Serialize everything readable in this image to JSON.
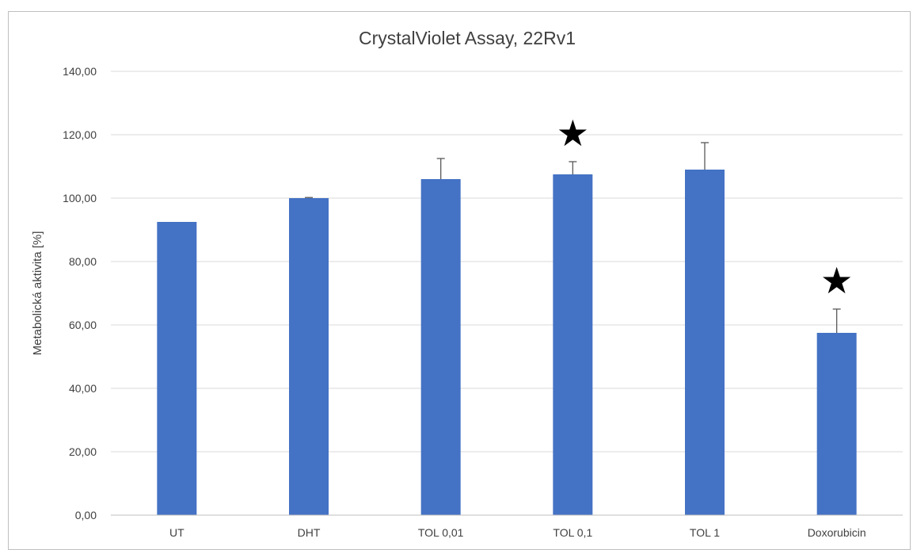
{
  "chart_data": {
    "type": "bar",
    "title": "CrystalViolet Assay, 22Rv1",
    "xlabel": "",
    "ylabel": "Metabolická aktivita [%]",
    "ylim": [
      0,
      140
    ],
    "ytick_step": 20,
    "ytick_labels": [
      "0,00",
      "20,00",
      "40,00",
      "60,00",
      "80,00",
      "100,00",
      "120,00",
      "140,00"
    ],
    "categories": [
      "UT",
      "DHT",
      "TOL 0,01",
      "TOL 0,1",
      "TOL 1",
      "Doxorubicin"
    ],
    "values": [
      92.5,
      100.0,
      106.0,
      107.5,
      109.0,
      57.5
    ],
    "error_plus": [
      0.0,
      0.2,
      6.5,
      4.0,
      8.5,
      7.5
    ],
    "significant": [
      false,
      false,
      false,
      true,
      false,
      true
    ],
    "significance_marker": "★",
    "grid": true,
    "legend": "none",
    "colors": {
      "bar": "#4472c4",
      "error_bar": "#595959",
      "grid": "#d9d9d9",
      "text": "#404040"
    }
  }
}
